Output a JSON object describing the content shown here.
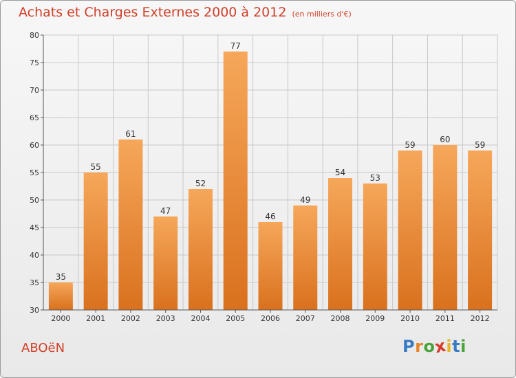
{
  "chart_data": {
    "type": "bar",
    "title": "Achats et Charges Externes 2000 à 2012",
    "subtitle": "(en milliers d'€)",
    "categories": [
      "2000",
      "2001",
      "2002",
      "2003",
      "2004",
      "2005",
      "2006",
      "2007",
      "2008",
      "2009",
      "2010",
      "2011",
      "2012"
    ],
    "values": [
      35,
      55,
      61,
      47,
      52,
      77,
      46,
      49,
      54,
      53,
      59,
      60,
      59
    ],
    "ylim": [
      30,
      80
    ],
    "yticks": [
      30,
      35,
      40,
      45,
      50,
      55,
      60,
      65,
      70,
      75,
      80
    ],
    "grid": true,
    "bar_color_top": "#f6a75a",
    "bar_color_bottom": "#d9711e",
    "grid_color": "#c8c8c8"
  },
  "footer": {
    "commune": "ABOëN",
    "logo_letters": [
      {
        "ch": "P",
        "color": "#3a7cc4"
      },
      {
        "ch": "r",
        "color": "#e8842a"
      },
      {
        "ch": "o",
        "color": "#4aa33a"
      },
      {
        "ch": "x",
        "color": "#d63a2a"
      },
      {
        "ch": "i",
        "color": "#e8b52a"
      },
      {
        "ch": "t",
        "color": "#3a7cc4"
      },
      {
        "ch": "i",
        "color": "#4aa33a"
      }
    ]
  }
}
